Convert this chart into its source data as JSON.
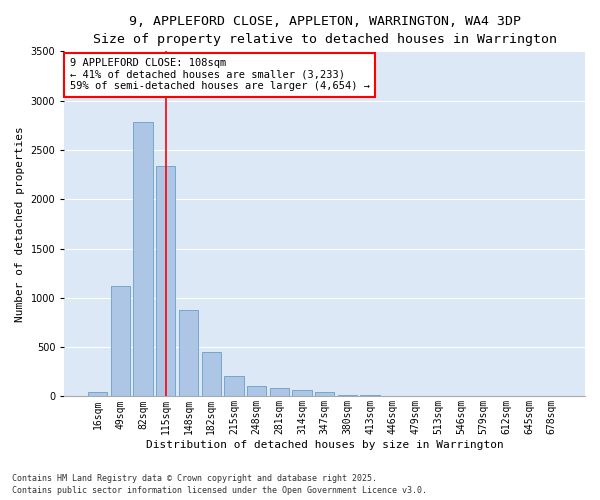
{
  "title_line1": "9, APPLEFORD CLOSE, APPLETON, WARRINGTON, WA4 3DP",
  "title_line2": "Size of property relative to detached houses in Warrington",
  "xlabel": "Distribution of detached houses by size in Warrington",
  "ylabel": "Number of detached properties",
  "categories": [
    "16sqm",
    "49sqm",
    "82sqm",
    "115sqm",
    "148sqm",
    "182sqm",
    "215sqm",
    "248sqm",
    "281sqm",
    "314sqm",
    "347sqm",
    "380sqm",
    "413sqm",
    "446sqm",
    "479sqm",
    "513sqm",
    "546sqm",
    "579sqm",
    "612sqm",
    "645sqm",
    "678sqm"
  ],
  "values": [
    40,
    1120,
    2780,
    2340,
    880,
    450,
    210,
    110,
    90,
    65,
    40,
    18,
    15,
    8,
    5,
    3,
    2,
    1,
    1,
    0,
    0
  ],
  "bar_color": "#adc6e5",
  "bar_edge_color": "#6a9fc8",
  "vline_index": 3,
  "vline_color": "red",
  "annotation_text": "9 APPLEFORD CLOSE: 108sqm\n← 41% of detached houses are smaller (3,233)\n59% of semi-detached houses are larger (4,654) →",
  "annotation_box_color": "white",
  "annotation_box_edge": "red",
  "ylim": [
    0,
    3500
  ],
  "yticks": [
    0,
    500,
    1000,
    1500,
    2000,
    2500,
    3000,
    3500
  ],
  "background_color": "#dce8f5",
  "grid_color": "white",
  "footer_line1": "Contains HM Land Registry data © Crown copyright and database right 2025.",
  "footer_line2": "Contains public sector information licensed under the Open Government Licence v3.0.",
  "title_fontsize": 9.5,
  "subtitle_fontsize": 8.5,
  "axis_label_fontsize": 8,
  "tick_fontsize": 7,
  "annotation_fontsize": 7.5,
  "footer_fontsize": 6
}
